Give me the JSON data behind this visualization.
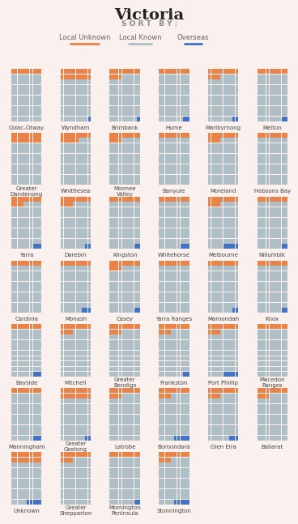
{
  "title": "Victoria",
  "subtitle": "S O R T   B Y :",
  "legend_labels": [
    "Local Unknown",
    "Local Known",
    "Overseas"
  ],
  "legend_colors": [
    "#E8834A",
    "#B0BEC5",
    "#4472C4"
  ],
  "bg_color": "#FAF0EE",
  "orange": "#E8834A",
  "blue": "#4472C4",
  "gray": "#B0BEC5",
  "councils": [
    {
      "name": "Colac-Otway",
      "orange": 10,
      "blue": 0
    },
    {
      "name": "Wyndham",
      "orange": 20,
      "blue": 1
    },
    {
      "name": "Brimbank",
      "orange": 14,
      "blue": 1
    },
    {
      "name": "Hume",
      "orange": 10,
      "blue": 2
    },
    {
      "name": "Maribyrnong",
      "orange": 14,
      "blue": 2
    },
    {
      "name": "Melton",
      "orange": 10,
      "blue": 2
    },
    {
      "name": "Greater\nDandenong",
      "orange": 20,
      "blue": 0
    },
    {
      "name": "Whittlesea",
      "orange": 16,
      "blue": 0
    },
    {
      "name": "Moonee\nValley",
      "orange": 14,
      "blue": 0
    },
    {
      "name": "Banyule",
      "orange": 10,
      "blue": 0
    },
    {
      "name": "Moreland",
      "orange": 14,
      "blue": 0
    },
    {
      "name": "Hobsons Bay",
      "orange": 10,
      "blue": 0
    },
    {
      "name": "Yarra",
      "orange": 14,
      "blue": 3
    },
    {
      "name": "Darebin",
      "orange": 14,
      "blue": 2
    },
    {
      "name": "Kingston",
      "orange": 10,
      "blue": 2
    },
    {
      "name": "Whitehorse",
      "orange": 10,
      "blue": 3
    },
    {
      "name": "Melbourne",
      "orange": 14,
      "blue": 5
    },
    {
      "name": "Nillumbik",
      "orange": 10,
      "blue": 2
    },
    {
      "name": "Cardinia",
      "orange": 10,
      "blue": 0
    },
    {
      "name": "Monash",
      "orange": 10,
      "blue": 3
    },
    {
      "name": "Casey",
      "orange": 14,
      "blue": 2
    },
    {
      "name": "Yarra Ranges",
      "orange": 10,
      "blue": 0
    },
    {
      "name": "Maroondah",
      "orange": 10,
      "blue": 2
    },
    {
      "name": "Knox",
      "orange": 10,
      "blue": 2
    },
    {
      "name": "Bayside",
      "orange": 10,
      "blue": 3
    },
    {
      "name": "Mitchell",
      "orange": 14,
      "blue": 0
    },
    {
      "name": "Greater\nBendigo",
      "orange": 14,
      "blue": 0
    },
    {
      "name": "Frankston",
      "orange": 14,
      "blue": 2
    },
    {
      "name": "Port Phillip",
      "orange": 14,
      "blue": 5
    },
    {
      "name": "Macedon\nRanges",
      "orange": 10,
      "blue": 0
    },
    {
      "name": "Manningham",
      "orange": 10,
      "blue": 3
    },
    {
      "name": "Greater\nGeelong",
      "orange": 20,
      "blue": 2
    },
    {
      "name": "Latrobe",
      "orange": 14,
      "blue": 0
    },
    {
      "name": "Boroondara",
      "orange": 14,
      "blue": 5
    },
    {
      "name": "Glen Eira",
      "orange": 14,
      "blue": 3
    },
    {
      "name": "Ballarat",
      "orange": 14,
      "blue": 0
    },
    {
      "name": "Unknown",
      "orange": 20,
      "blue": 5
    },
    {
      "name": "Greater\nShepparton",
      "orange": 14,
      "blue": 0
    },
    {
      "name": "Mornington\nPeninsula",
      "orange": 10,
      "blue": 2
    },
    {
      "name": "Stonnington",
      "orange": 14,
      "blue": 5
    }
  ],
  "ncols": 6,
  "grid_size": 10
}
